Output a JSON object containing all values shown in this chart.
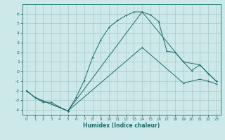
{
  "xlabel": "Humidex (Indice chaleur)",
  "ylabel": "",
  "xlim": [
    -0.5,
    23.5
  ],
  "ylim": [
    -4.5,
    7.0
  ],
  "yticks": [
    -4,
    -3,
    -2,
    -1,
    0,
    1,
    2,
    3,
    4,
    5,
    6
  ],
  "xticks": [
    0,
    1,
    2,
    3,
    4,
    5,
    6,
    7,
    8,
    9,
    10,
    11,
    12,
    13,
    14,
    15,
    16,
    17,
    18,
    19,
    20,
    21,
    22,
    23
  ],
  "background_color": "#cde8e8",
  "grid_color": "#a8c8c8",
  "line_color": "#1a6e6e",
  "series1_x": [
    0,
    1,
    2,
    3,
    4,
    5,
    6,
    7,
    8,
    9,
    10,
    11,
    12,
    13,
    14,
    15,
    16,
    17,
    18,
    19,
    20,
    21,
    22,
    23
  ],
  "series1_y": [
    -2.0,
    -2.7,
    -3.2,
    -3.2,
    -3.7,
    -4.1,
    -2.7,
    -0.9,
    1.5,
    3.3,
    4.6,
    5.3,
    5.8,
    6.2,
    6.2,
    5.9,
    5.2,
    2.1,
    2.0,
    1.0,
    0.1,
    0.7,
    -0.2,
    -1.0
  ],
  "series2_x": [
    0,
    1,
    5,
    14,
    19,
    21,
    22,
    23
  ],
  "series2_y": [
    -2.0,
    -2.7,
    -4.1,
    6.2,
    1.0,
    0.7,
    -0.2,
    -1.0
  ],
  "series3_x": [
    0,
    1,
    5,
    14,
    19,
    21,
    22,
    23
  ],
  "series3_y": [
    -2.0,
    -2.7,
    -4.1,
    2.5,
    -1.2,
    -0.8,
    -1.0,
    -1.3
  ]
}
